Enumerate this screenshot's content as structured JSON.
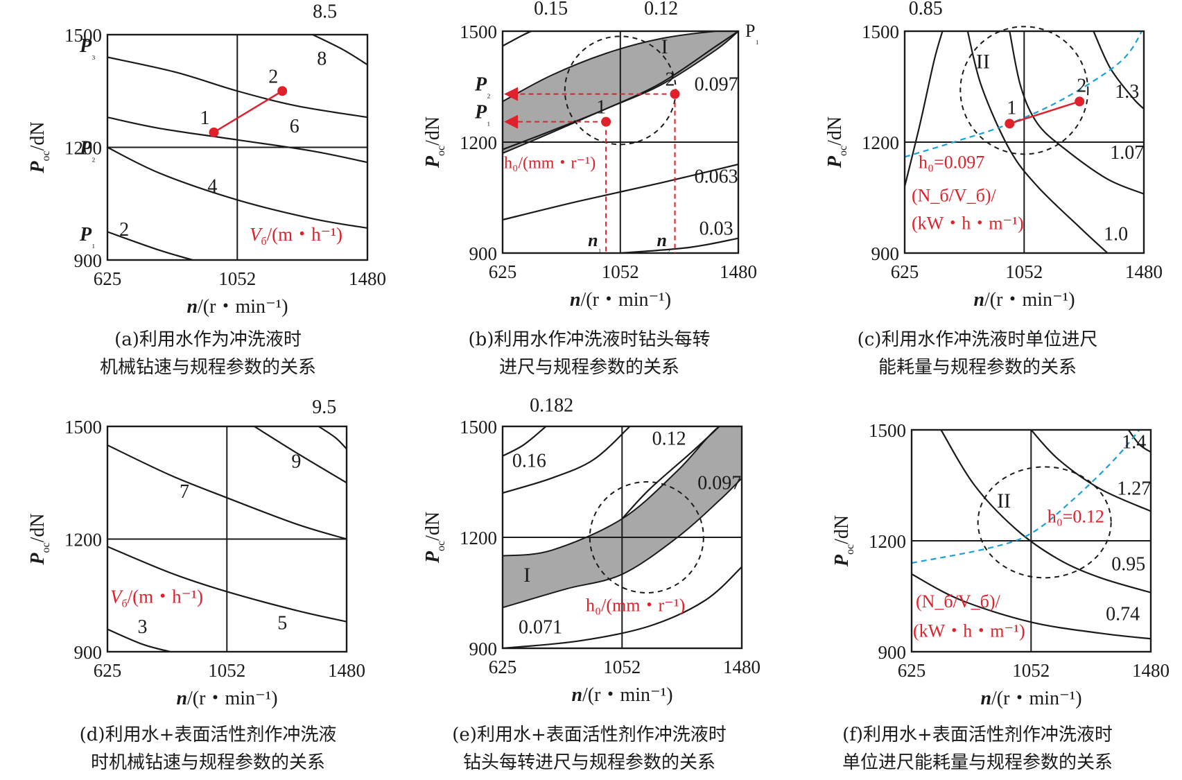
{
  "chart_data": [
    {
      "id": "a",
      "type": "contour",
      "caption": [
        "(a)利用水作为冲洗液时",
        "机械钻速与规程参数的关系"
      ],
      "x_ticks": [
        "625",
        "1052",
        "1480"
      ],
      "y_ticks": [
        "900",
        "1200",
        "1500"
      ],
      "xlim": [
        625,
        1480
      ],
      "ylim": [
        900,
        1500
      ],
      "xlabel": "n/(r・min⁻¹)",
      "ylabel": "P_oc/dN",
      "legend_label": "V_б/(m・h⁻¹)",
      "contours": [
        {
          "label": "2",
          "points": [
            [
              625,
              975
            ],
            [
              800,
              925
            ],
            [
              950,
              890
            ]
          ]
        },
        {
          "label": "4",
          "points": [
            [
              625,
              1200
            ],
            [
              800,
              1130
            ],
            [
              1052,
              1060
            ],
            [
              1300,
              1010
            ],
            [
              1480,
              985
            ]
          ]
        },
        {
          "label": "6",
          "points": [
            [
              625,
              1280
            ],
            [
              800,
              1250
            ],
            [
              1052,
              1220
            ],
            [
              1300,
              1190
            ],
            [
              1480,
              1160
            ]
          ]
        },
        {
          "label": "8",
          "points": [
            [
              625,
              1440
            ],
            [
              850,
              1400
            ],
            [
              1052,
              1350
            ],
            [
              1250,
              1310
            ],
            [
              1480,
              1280
            ]
          ]
        },
        {
          "label": "8.5",
          "points": [
            [
              1300,
              1500
            ],
            [
              1400,
              1460
            ],
            [
              1480,
              1420
            ]
          ]
        }
      ],
      "contour_label_pos": {
        "2": [
          680,
          965
        ],
        "4": [
          970,
          1080
        ],
        "6": [
          1240,
          1240
        ],
        "8": [
          1330,
          1420
        ],
        "8.5": [
          1340,
          1545
        ]
      },
      "p_levels": [
        {
          "label": "P₃",
          "y": 1500
        },
        {
          "label": "P₂",
          "y": 1200
        },
        {
          "label": "P₁",
          "y": 970
        }
      ],
      "points": [
        {
          "label": "1",
          "x": 975,
          "y": 1240
        },
        {
          "label": "2",
          "x": 1200,
          "y": 1350
        }
      ]
    },
    {
      "id": "b",
      "type": "contour",
      "caption": [
        "(b)利用水作冲洗液时钻头每转",
        "进尺与规程参数的关系"
      ],
      "x_ticks": [
        "625",
        "1052",
        "1480"
      ],
      "y_ticks": [
        "900",
        "1200",
        "1500"
      ],
      "xlim": [
        625,
        1480
      ],
      "ylim": [
        900,
        1500
      ],
      "xlabel": "n/(r・min⁻¹)",
      "ylabel": "P_oc/dN",
      "legend_label": "h₀/(mm・r⁻¹)",
      "contour_labels": [
        {
          "text": "0.15",
          "x": 800,
          "y": 1545
        },
        {
          "text": "0.12",
          "x": 1200,
          "y": 1545
        },
        {
          "text": "0.097",
          "x": 1400,
          "y": 1340
        },
        {
          "text": "0.063",
          "x": 1400,
          "y": 1090
        },
        {
          "text": "0.03",
          "x": 1400,
          "y": 950
        }
      ],
      "contours": [
        {
          "label": "0.15",
          "points": [
            [
              625,
              1460
            ],
            [
              700,
              1490
            ],
            [
              760,
              1510
            ]
          ]
        },
        {
          "label": "0.097",
          "points": [
            [
              625,
              1180
            ],
            [
              800,
              1230
            ],
            [
              1000,
              1290
            ],
            [
              1200,
              1360
            ],
            [
              1400,
              1460
            ],
            [
              1480,
              1500
            ]
          ]
        },
        {
          "label": "0.063",
          "points": [
            [
              625,
              990
            ],
            [
              900,
              1040
            ],
            [
              1200,
              1090
            ],
            [
              1480,
              1140
            ]
          ]
        },
        {
          "label": "0.03",
          "points": [
            [
              1052,
              900
            ],
            [
              1300,
              915
            ],
            [
              1480,
              940
            ]
          ]
        }
      ],
      "band_upper": [
        [
          625,
          1310
        ],
        [
          800,
          1380
        ],
        [
          1000,
          1440
        ],
        [
          1200,
          1480
        ],
        [
          1400,
          1500
        ],
        [
          1480,
          1500
        ]
      ],
      "band_lower": [
        [
          625,
          1170
        ],
        [
          800,
          1225
        ],
        [
          1000,
          1290
        ],
        [
          1200,
          1355
        ],
        [
          1400,
          1450
        ],
        [
          1480,
          1500
        ]
      ],
      "band_label": "I",
      "p_levels": [
        {
          "label": "P₂",
          "y": 1330
        },
        {
          "label": "P₁",
          "y": 1255
        }
      ],
      "p_top_label": "P₁",
      "n_marks": [
        {
          "label": "n₁",
          "x": 1000
        },
        {
          "label": "n₂",
          "x": 1250
        }
      ],
      "points": [
        {
          "label": "1",
          "x": 1000,
          "y": 1255
        },
        {
          "label": "2",
          "x": 1250,
          "y": 1330
        }
      ]
    },
    {
      "id": "c",
      "type": "contour",
      "caption": [
        "(c)利用水作冲洗液时单位进尺",
        "能耗量与规程参数的关系"
      ],
      "x_ticks": [
        "625",
        "1052",
        "1480"
      ],
      "y_ticks": [
        "900",
        "1200",
        "1500"
      ],
      "xlim": [
        625,
        1480
      ],
      "ylim": [
        900,
        1500
      ],
      "xlabel": "n/(r・min⁻¹)",
      "ylabel": "P_oc/dN",
      "legend_label": [
        "(N_б/V_б)/",
        "(kW・h・m⁻¹)"
      ],
      "contour_labels": [
        {
          "text": "0.85",
          "x": 700,
          "y": 1545
        },
        {
          "text": "1.3",
          "x": 1420,
          "y": 1320
        },
        {
          "text": "1.07",
          "x": 1420,
          "y": 1155
        },
        {
          "text": "1.0",
          "x": 1380,
          "y": 935
        }
      ],
      "contours": [
        {
          "label": "0.85",
          "points": [
            [
              625,
              1080
            ],
            [
              680,
              1250
            ],
            [
              730,
              1420
            ],
            [
              760,
              1500
            ]
          ]
        },
        {
          "label": "1.0",
          "points": [
            [
              850,
              1500
            ],
            [
              900,
              1350
            ],
            [
              1000,
              1180
            ],
            [
              1100,
              1080
            ],
            [
              1250,
              970
            ],
            [
              1350,
              900
            ]
          ]
        },
        {
          "label": "1.07",
          "points": [
            [
              1000,
              1500
            ],
            [
              1040,
              1350
            ],
            [
              1100,
              1250
            ],
            [
              1200,
              1180
            ],
            [
              1350,
              1100
            ],
            [
              1480,
              1060
            ]
          ]
        },
        {
          "label": "1.3",
          "points": [
            [
              1300,
              1500
            ],
            [
              1360,
              1400
            ],
            [
              1440,
              1320
            ],
            [
              1480,
              1290
            ]
          ]
        }
      ],
      "dashed_curve": {
        "label": "h₀=0.097",
        "points": [
          [
            625,
            1160
          ],
          [
            800,
            1200
          ],
          [
            1000,
            1250
          ],
          [
            1200,
            1320
          ],
          [
            1400,
            1420
          ],
          [
            1480,
            1510
          ]
        ]
      },
      "region_label": "II",
      "points": [
        {
          "label": "1",
          "x": 1000,
          "y": 1250
        },
        {
          "label": "2",
          "x": 1250,
          "y": 1310
        }
      ]
    },
    {
      "id": "d",
      "type": "contour",
      "caption": [
        "(d)利用水+表面活性剂作冲洗液",
        "时机械钻速与规程参数的关系"
      ],
      "x_ticks": [
        "625",
        "1052",
        "1480"
      ],
      "y_ticks": [
        "900",
        "1200",
        "1500"
      ],
      "xlim": [
        625,
        1480
      ],
      "ylim": [
        900,
        1500
      ],
      "xlabel": "n/(r・min⁻¹)",
      "ylabel": "P_oc/dN",
      "legend_label": "V_б/(m・h⁻¹)",
      "contour_labels": [
        {
          "text": "3",
          "x": 750,
          "y": 950
        },
        {
          "text": "5",
          "x": 1250,
          "y": 960
        },
        {
          "text": "7",
          "x": 900,
          "y": 1310
        },
        {
          "text": "9",
          "x": 1300,
          "y": 1390
        },
        {
          "text": "9.5",
          "x": 1400,
          "y": 1535
        }
      ],
      "contours": [
        {
          "label": "3",
          "points": [
            [
              625,
              960
            ],
            [
              750,
              920
            ],
            [
              850,
              900
            ]
          ]
        },
        {
          "label": "5",
          "points": [
            [
              625,
              1180
            ],
            [
              850,
              1110
            ],
            [
              1052,
              1060
            ],
            [
              1300,
              1010
            ],
            [
              1480,
              980
            ]
          ]
        },
        {
          "label": "7",
          "points": [
            [
              625,
              1450
            ],
            [
              850,
              1370
            ],
            [
              1052,
              1310
            ],
            [
              1300,
              1240
            ],
            [
              1480,
              1200
            ]
          ]
        },
        {
          "label": "9",
          "points": [
            [
              1150,
              1500
            ],
            [
              1300,
              1430
            ],
            [
              1480,
              1350
            ]
          ]
        },
        {
          "label": "9.5",
          "points": [
            [
              1380,
              1500
            ],
            [
              1440,
              1470
            ],
            [
              1480,
              1440
            ]
          ]
        }
      ]
    },
    {
      "id": "e",
      "type": "contour",
      "caption": [
        "(e)利用水+表面活性剂作冲洗液时",
        "钻头每转进尺与规程参数的关系"
      ],
      "x_ticks": [
        "625",
        "1052",
        "1480"
      ],
      "y_ticks": [
        "900",
        "1200",
        "1500"
      ],
      "xlim": [
        625,
        1480
      ],
      "ylim": [
        900,
        1500
      ],
      "xlabel": "n/(r・min⁻¹)",
      "ylabel": "P_oc/dN",
      "legend_label": "h₀/(mm・r⁻¹)",
      "contour_labels": [
        {
          "text": "0.182",
          "x": 800,
          "y": 1540
        },
        {
          "text": "0.16",
          "x": 720,
          "y": 1390
        },
        {
          "text": "0.12",
          "x": 1220,
          "y": 1450
        },
        {
          "text": "0.097",
          "x": 1400,
          "y": 1330
        },
        {
          "text": "0.071",
          "x": 760,
          "y": 940
        }
      ],
      "contours": [
        {
          "label": "0.182",
          "points": [
            [
              625,
              1420
            ],
            [
              700,
              1450
            ],
            [
              780,
              1500
            ]
          ]
        },
        {
          "label": "0.16",
          "points": [
            [
              625,
              1320
            ],
            [
              800,
              1360
            ],
            [
              950,
              1410
            ],
            [
              1080,
              1500
            ]
          ]
        },
        {
          "label": "0.12",
          "points": [
            [
              1052,
              1250
            ],
            [
              1150,
              1330
            ],
            [
              1300,
              1430
            ],
            [
              1400,
              1500
            ]
          ]
        },
        {
          "label": "0.071",
          "points": [
            [
              625,
              900
            ],
            [
              900,
              920
            ],
            [
              1150,
              960
            ],
            [
              1350,
              1030
            ],
            [
              1480,
              1120
            ]
          ]
        }
      ],
      "band_upper": [
        [
          625,
          1150
        ],
        [
          800,
          1165
        ],
        [
          1052,
          1250
        ],
        [
          1250,
          1380
        ],
        [
          1400,
          1500
        ],
        [
          1480,
          1500
        ]
      ],
      "band_lower": [
        [
          625,
          1010
        ],
        [
          850,
          1060
        ],
        [
          1052,
          1100
        ],
        [
          1250,
          1200
        ],
        [
          1400,
          1300
        ],
        [
          1480,
          1360
        ]
      ],
      "band_label": "I"
    },
    {
      "id": "f",
      "type": "contour",
      "caption": [
        "(f)利用水+表面活性剂作冲洗液时",
        "单位进尺能耗量与规程参数的关系"
      ],
      "x_ticks": [
        "625",
        "1052",
        "1480"
      ],
      "y_ticks": [
        "900",
        "1200",
        "1500"
      ],
      "xlim": [
        625,
        1480
      ],
      "ylim": [
        900,
        1500
      ],
      "xlabel": "n/(r・min⁻¹)",
      "ylabel": "P_oc/dN",
      "legend_label": [
        "(N_б/V_б)/",
        "(kW・h・m⁻¹)"
      ],
      "contour_labels": [
        {
          "text": "1.4",
          "x": 1420,
          "y": 1450
        },
        {
          "text": "1.27",
          "x": 1420,
          "y": 1325
        },
        {
          "text": "0.95",
          "x": 1400,
          "y": 1120
        },
        {
          "text": "0.74",
          "x": 1380,
          "y": 985
        }
      ],
      "contours": [
        {
          "label": "1.4",
          "points": [
            [
              1400,
              1500
            ],
            [
              1440,
              1460
            ],
            [
              1480,
              1440
            ]
          ]
        },
        {
          "label": "1.27",
          "points": [
            [
              1052,
              1500
            ],
            [
              1150,
              1420
            ],
            [
              1300,
              1340
            ],
            [
              1480,
              1280
            ]
          ]
        },
        {
          "label": "0.95",
          "points": [
            [
              730,
              1500
            ],
            [
              850,
              1350
            ],
            [
              1000,
              1230
            ],
            [
              1150,
              1150
            ],
            [
              1300,
              1100
            ],
            [
              1480,
              1060
            ]
          ]
        },
        {
          "label": "0.74",
          "points": [
            [
              625,
              1110
            ],
            [
              800,
              1040
            ],
            [
              1052,
              980
            ],
            [
              1300,
              950
            ],
            [
              1480,
              935
            ]
          ]
        }
      ],
      "dashed_curve": {
        "label": "h₀=0.12",
        "points": [
          [
            625,
            1140
          ],
          [
            900,
            1180
          ],
          [
            1052,
            1220
          ],
          [
            1200,
            1310
          ],
          [
            1350,
            1420
          ],
          [
            1450,
            1510
          ]
        ]
      },
      "region_label": "II"
    }
  ]
}
